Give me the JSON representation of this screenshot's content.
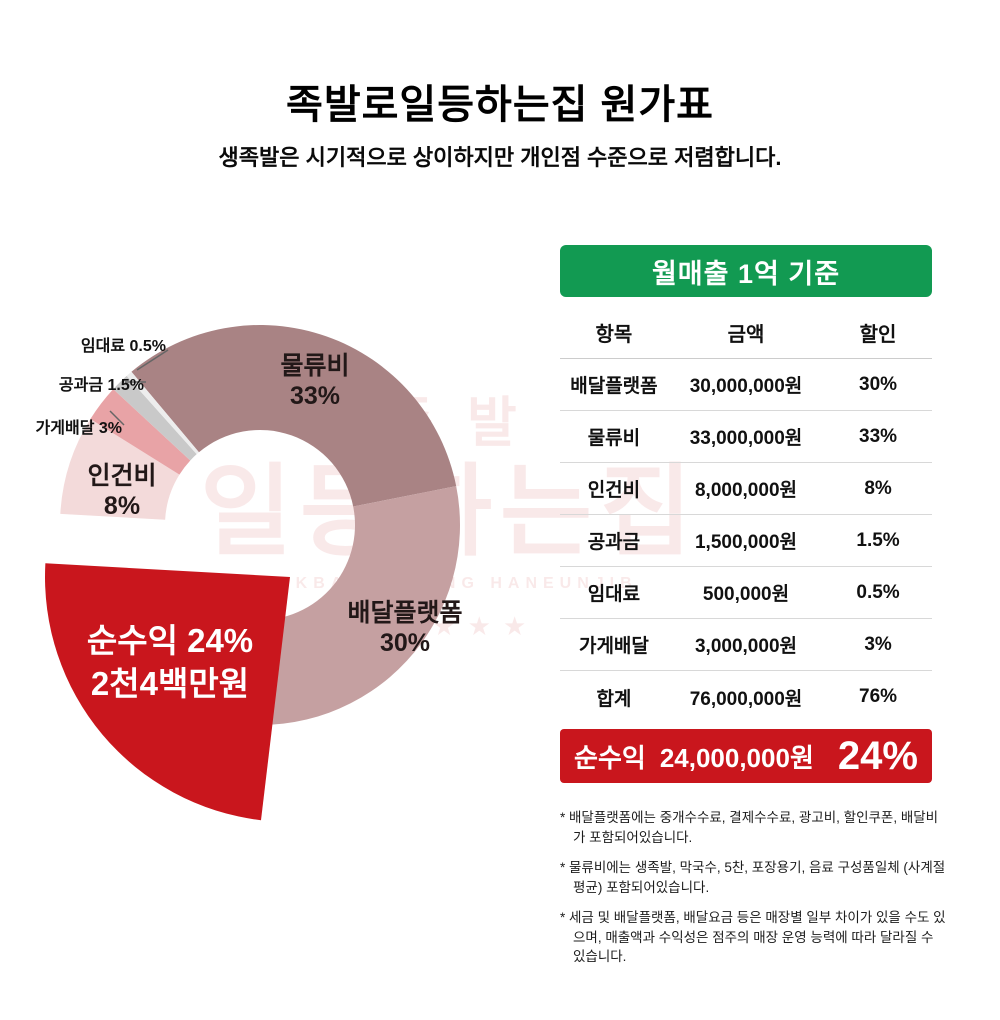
{
  "page": {
    "title": "족발로일등하는집 원가표",
    "subtitle": "생족발은 시기적으로 상이하지만 개인점 수준으로 저렴합니다."
  },
  "watermark": {
    "top": "족발",
    "main": "일등하는집",
    "latin": "JOKBALOILDUNG HANEUNJIB",
    "stars": "★★★★★"
  },
  "chart_data": {
    "type": "pie",
    "title": "족발로일등하는집 원가표",
    "subtitle": "월매출 1억 기준",
    "start_angle_deg": 320,
    "slices": [
      {
        "label": "물류비",
        "pct": 33,
        "pct_label": "33%",
        "color": "#a98384",
        "exploded": false
      },
      {
        "label": "배달플랫폼",
        "pct": 30,
        "pct_label": "30%",
        "color": "#c5a0a1",
        "exploded": false
      },
      {
        "label": "순수익",
        "pct": 24,
        "pct_label": "24%",
        "color": "#c9161d",
        "exploded": true
      },
      {
        "label": "인건비",
        "pct": 8,
        "pct_label": "8%",
        "color": "#f3dada",
        "exploded": false
      },
      {
        "label": "가게배달",
        "pct": 3,
        "pct_label": "3%",
        "color": "#e8a3a6",
        "exploded": false
      },
      {
        "label": "공과금",
        "pct": 1.5,
        "pct_label": "1.5%",
        "color": "#c9c9c9",
        "exploded": false
      },
      {
        "label": "임대료",
        "pct": 0.5,
        "pct_label": "0.5%",
        "color": "#ededed",
        "exploded": false
      }
    ],
    "callout": {
      "line1": "순수익 24%",
      "line2": "2천4백만원"
    }
  },
  "table": {
    "banner": "월매출 1억 기준",
    "headers": {
      "item": "항목",
      "amount": "금액",
      "pct": "할인"
    },
    "rows": [
      {
        "item": "배달플랫폼",
        "amount": "30,000,000원",
        "pct": "30%"
      },
      {
        "item": "물류비",
        "amount": "33,000,000원",
        "pct": "33%"
      },
      {
        "item": "인건비",
        "amount": "8,000,000원",
        "pct": "8%"
      },
      {
        "item": "공과금",
        "amount": "1,500,000원",
        "pct": "1.5%"
      },
      {
        "item": "임대료",
        "amount": "500,000원",
        "pct": "0.5%"
      },
      {
        "item": "가게배달",
        "amount": "3,000,000원",
        "pct": "3%"
      },
      {
        "item": "합계",
        "amount": "76,000,000원",
        "pct": "76%"
      }
    ],
    "footer": {
      "label": "순수익",
      "amount": "24,000,000원",
      "pct": "24%"
    }
  },
  "footnotes": [
    "* 배달플랫폼에는 중개수수료, 결제수수료, 광고비, 할인쿠폰, 배달비가 포함되어있습니다.",
    "* 물류비에는 생족발, 막국수, 5찬, 포장용기, 음료 구성품일체 (사계절평균) 포함되어있습니다.",
    "* 세금 및 배달플랫폼, 배달요금 등은 매장별 일부 차이가 있을 수도 있으며, 매출액과 수익성은 점주의 매장 운영 능력에 따라 달라질 수 있습니다."
  ]
}
